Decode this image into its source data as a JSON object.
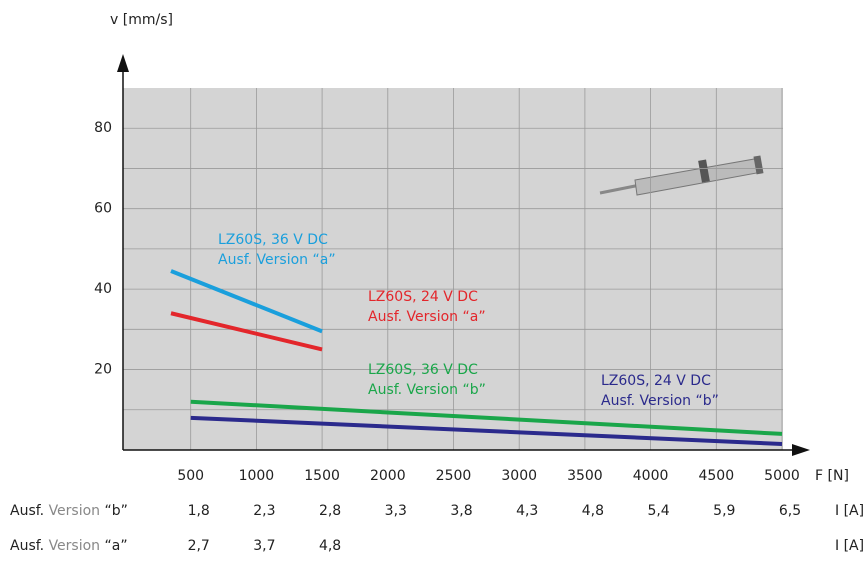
{
  "chart_data": {
    "type": "line",
    "y_label": "v [mm/s]",
    "x_label": "F [N]",
    "xlim": [
      0,
      5000
    ],
    "ylim": [
      0,
      90
    ],
    "xticks": [
      500,
      1000,
      1500,
      2000,
      2500,
      3000,
      3500,
      4000,
      4500,
      5000
    ],
    "yticks": [
      20,
      40,
      60,
      80
    ],
    "y_minor_grid": [
      10,
      30,
      50,
      70
    ],
    "grid": true,
    "series": [
      {
        "name": "LZ60S, 36 V DC",
        "version": "Ausf. Version “a”",
        "color": "#1a9fdc",
        "x": [
          350,
          1500
        ],
        "values": [
          44.5,
          29.5
        ]
      },
      {
        "name": "LZ60S, 24 V DC",
        "version": "Ausf. Version “a”",
        "color": "#e3262b",
        "x": [
          350,
          1500
        ],
        "values": [
          34,
          25
        ]
      },
      {
        "name": "LZ60S, 36 V DC",
        "version": "Ausf. Version “b”",
        "color": "#1aa64a",
        "x": [
          500,
          5000
        ],
        "values": [
          12,
          4
        ]
      },
      {
        "name": "LZ60S, 24 V DC",
        "version": "Ausf. Version “b”",
        "color": "#2b2a8c",
        "x": [
          500,
          5000
        ],
        "values": [
          8,
          1.5
        ]
      }
    ],
    "current_unit": "I [A]",
    "current_rows": [
      {
        "label": [
          "Ausf.",
          "Version",
          "“b”"
        ],
        "values": [
          "1,8",
          "2,3",
          "2,8",
          "3,3",
          "3,8",
          "4,3",
          "4,8",
          "5,4",
          "5,9",
          "6,5"
        ]
      },
      {
        "label": [
          "Ausf.",
          "Version",
          "“a”"
        ],
        "values": [
          "2,7",
          "3,7",
          "4,8"
        ]
      }
    ]
  }
}
